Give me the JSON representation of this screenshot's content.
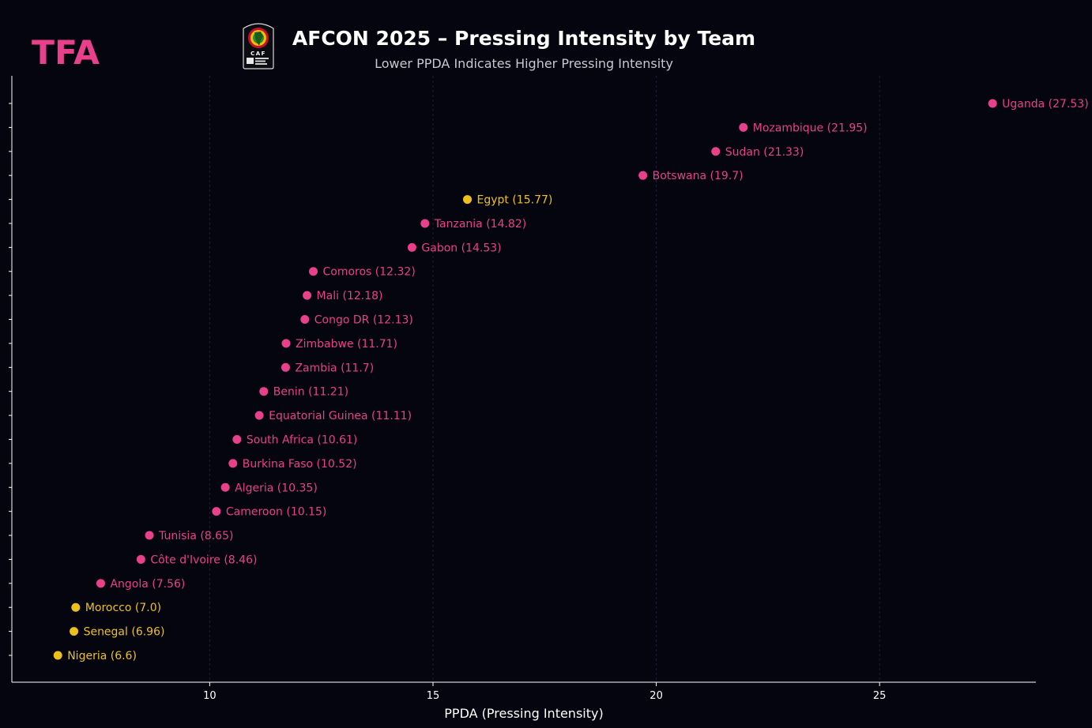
{
  "header": {
    "logo_text": "TFA",
    "badge_text": "CAF",
    "title": "AFCON 2025 – Pressing Intensity by Team",
    "subtitle": "Lower PPDA Indicates Higher Pressing Intensity"
  },
  "colors": {
    "background": "#05050f",
    "brand": "#e8408a",
    "highlight": "#eec11a",
    "default_point": "#e8408a",
    "axis": "#ffffff",
    "grid": "#1c2038"
  },
  "chart_data": {
    "type": "scatter",
    "title": "AFCON 2025 – Pressing Intensity by Team",
    "subtitle": "Lower PPDA Indicates Higher Pressing Intensity",
    "xlabel": "PPDA (Pressing Intensity)",
    "ylabel": "",
    "xlim": [
      5.57,
      28.5
    ],
    "xticks": [
      10,
      15,
      20,
      25
    ],
    "grid": "vertical dashed",
    "highlight_color": "#eec11a",
    "default_color": "#e8408a",
    "points": [
      {
        "team": "Uganda",
        "value": 27.53,
        "label": "Uganda (27.53)",
        "highlight": false
      },
      {
        "team": "Mozambique",
        "value": 21.95,
        "label": "Mozambique (21.95)",
        "highlight": false
      },
      {
        "team": "Sudan",
        "value": 21.33,
        "label": "Sudan (21.33)",
        "highlight": false
      },
      {
        "team": "Botswana",
        "value": 19.7,
        "label": "Botswana (19.7)",
        "highlight": false
      },
      {
        "team": "Egypt",
        "value": 15.77,
        "label": "Egypt (15.77)",
        "highlight": true
      },
      {
        "team": "Tanzania",
        "value": 14.82,
        "label": "Tanzania (14.82)",
        "highlight": false
      },
      {
        "team": "Gabon",
        "value": 14.53,
        "label": "Gabon (14.53)",
        "highlight": false
      },
      {
        "team": "Comoros",
        "value": 12.32,
        "label": "Comoros (12.32)",
        "highlight": false
      },
      {
        "team": "Mali",
        "value": 12.18,
        "label": "Mali (12.18)",
        "highlight": false
      },
      {
        "team": "Congo DR",
        "value": 12.13,
        "label": "Congo DR (12.13)",
        "highlight": false
      },
      {
        "team": "Zimbabwe",
        "value": 11.71,
        "label": "Zimbabwe (11.71)",
        "highlight": false
      },
      {
        "team": "Zambia",
        "value": 11.7,
        "label": "Zambia (11.7)",
        "highlight": false
      },
      {
        "team": "Benin",
        "value": 11.21,
        "label": "Benin (11.21)",
        "highlight": false
      },
      {
        "team": "Equatorial Guinea",
        "value": 11.11,
        "label": "Equatorial Guinea (11.11)",
        "highlight": false
      },
      {
        "team": "South Africa",
        "value": 10.61,
        "label": "South Africa (10.61)",
        "highlight": false
      },
      {
        "team": "Burkina Faso",
        "value": 10.52,
        "label": "Burkina Faso (10.52)",
        "highlight": false
      },
      {
        "team": "Algeria",
        "value": 10.35,
        "label": "Algeria (10.35)",
        "highlight": false
      },
      {
        "team": "Cameroon",
        "value": 10.15,
        "label": "Cameroon (10.15)",
        "highlight": false
      },
      {
        "team": "Tunisia",
        "value": 8.65,
        "label": "Tunisia (8.65)",
        "highlight": false
      },
      {
        "team": "Côte d'Ivoire",
        "value": 8.46,
        "label": "Côte d'Ivoire (8.46)",
        "highlight": false
      },
      {
        "team": "Angola",
        "value": 7.56,
        "label": "Angola (7.56)",
        "highlight": false
      },
      {
        "team": "Morocco",
        "value": 7.0,
        "label": "Morocco (7.0)",
        "highlight": true
      },
      {
        "team": "Senegal",
        "value": 6.96,
        "label": "Senegal (6.96)",
        "highlight": true
      },
      {
        "team": "Nigeria",
        "value": 6.6,
        "label": "Nigeria (6.6)",
        "highlight": true
      }
    ]
  }
}
